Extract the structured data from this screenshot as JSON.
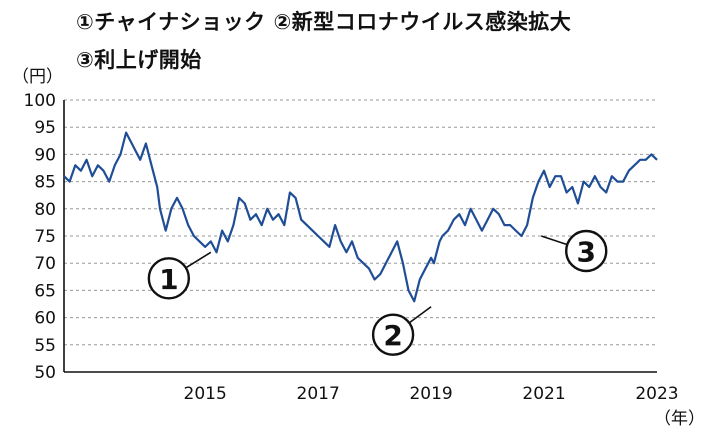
{
  "titles": {
    "line1": "①チャイナショック ②新型コロナウイルス感染拡大",
    "line2": "③利上げ開始"
  },
  "y_unit": "（円）",
  "x_unit": "（年）",
  "chart_data": {
    "type": "line",
    "title": "①チャイナショック ②新型コロナウイルス感染拡大 ③利上げ開始",
    "ylabel": "（円）",
    "xlabel": "（年）",
    "ylim": [
      50,
      100
    ],
    "xlim": [
      2012.5,
      2023.0
    ],
    "yticks": [
      50,
      55,
      60,
      65,
      70,
      75,
      80,
      85,
      90,
      95,
      100
    ],
    "xticks": [
      2015,
      2017,
      2019,
      2021,
      2023
    ],
    "grid": "horizontal-dashed",
    "series": [
      {
        "color": "#1f4e96",
        "x": [
          2012.5,
          2012.6,
          2012.7,
          2012.8,
          2012.9,
          2013.0,
          2013.1,
          2013.2,
          2013.3,
          2013.4,
          2013.5,
          2013.6,
          2013.7,
          2013.75,
          2013.85,
          2013.95,
          2014.05,
          2014.15,
          2014.2,
          2014.3,
          2014.4,
          2014.5,
          2014.6,
          2014.7,
          2014.8,
          2014.9,
          2015.0,
          2015.1,
          2015.2,
          2015.3,
          2015.4,
          2015.5,
          2015.6,
          2015.7,
          2015.8,
          2015.9,
          2016.0,
          2016.1,
          2016.2,
          2016.3,
          2016.4,
          2016.5,
          2016.6,
          2016.7,
          2016.8,
          2016.9,
          2017.0,
          2017.1,
          2017.2,
          2017.3,
          2017.4,
          2017.5,
          2017.6,
          2017.7,
          2017.8,
          2017.9,
          2018.0,
          2018.1,
          2018.2,
          2018.3,
          2018.4,
          2018.5,
          2018.6,
          2018.7,
          2018.8,
          2018.9,
          2019.0,
          2019.05,
          2019.1,
          2019.15,
          2019.2,
          2019.3,
          2019.4,
          2019.5,
          2019.6,
          2019.7,
          2019.8,
          2019.9,
          2020.0,
          2020.1,
          2020.2,
          2020.3,
          2020.4,
          2020.5,
          2020.6,
          2020.7,
          2020.8,
          2020.9,
          2021.0,
          2021.1,
          2021.2,
          2021.3,
          2021.4,
          2021.5,
          2021.6,
          2021.7,
          2021.8,
          2021.9,
          2022.0,
          2022.1,
          2022.2,
          2022.3,
          2022.4,
          2022.5,
          2022.6,
          2022.7,
          2022.8,
          2022.9,
          2023.0
        ],
        "values": [
          86,
          85,
          88,
          87,
          89,
          86,
          88,
          87,
          85,
          88,
          90,
          94,
          92,
          91,
          89,
          92,
          88,
          84,
          80,
          76,
          80,
          82,
          80,
          77,
          75,
          74,
          73,
          74,
          72,
          76,
          74,
          77,
          82,
          81,
          78,
          79,
          77,
          80,
          78,
          79,
          77,
          83,
          82,
          78,
          77,
          76,
          75,
          74,
          73,
          77,
          74,
          72,
          74,
          71,
          70,
          69,
          67,
          68,
          70,
          72,
          74,
          70,
          65,
          63,
          67,
          69,
          71,
          70,
          72,
          74,
          75,
          76,
          78,
          79,
          77,
          80,
          78,
          76,
          78,
          80,
          79,
          77,
          77,
          76,
          75,
          77,
          82,
          85,
          87,
          84,
          86,
          86,
          83,
          84,
          81,
          85,
          84,
          86,
          84,
          83,
          86,
          85,
          85,
          87,
          88,
          89,
          89,
          90,
          89
        ]
      }
    ],
    "annotations": [
      {
        "label": "1",
        "x": 2015.1,
        "y": 72
      },
      {
        "label": "2",
        "x": 2019.0,
        "y": 62
      },
      {
        "label": "3",
        "x": 2020.95,
        "y": 75
      }
    ]
  }
}
